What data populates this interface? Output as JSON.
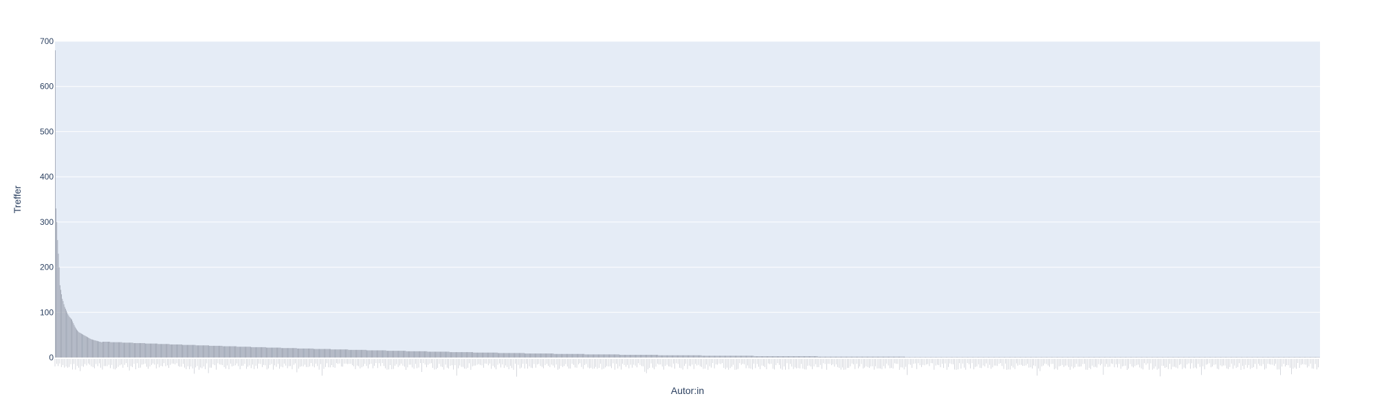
{
  "chart_data": {
    "type": "bar",
    "title": "",
    "xlabel": "Autor:in",
    "ylabel": "Treffer",
    "ylim": [
      0,
      700
    ],
    "yticks": [
      0,
      100,
      200,
      300,
      400,
      500,
      600,
      700
    ],
    "ytick_labels": [
      "0",
      "100",
      "200",
      "300",
      "400",
      "500",
      "600",
      "700"
    ],
    "grid": "horizontal",
    "legend": "none",
    "category_count": 1600,
    "values_head": [
      680,
      330,
      300,
      260,
      230,
      200,
      160,
      150,
      140,
      130,
      125,
      118,
      112,
      108,
      104,
      100,
      96,
      93,
      90,
      88,
      86,
      84,
      80,
      76,
      72,
      68,
      65,
      62,
      60,
      58,
      56,
      55,
      54,
      53,
      52,
      51,
      50,
      49,
      48,
      47,
      46,
      45,
      44,
      43,
      42,
      41,
      40,
      40,
      39,
      39,
      38,
      38,
      37,
      37,
      36,
      36,
      35,
      35,
      34,
      34
    ],
    "values_tail_approx": "decreasing from ~34 to 1 over remaining authors",
    "bar_color": "#9aa0ad",
    "plot_bg": "#e5ecf6",
    "grid_color": "#ffffff",
    "text_color": "#2a3f5f"
  }
}
